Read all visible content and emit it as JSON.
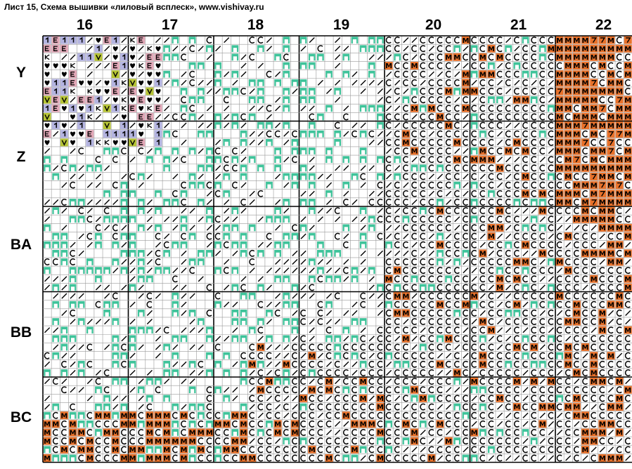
{
  "title": "Лист 15, Схема вышивки «лиловый всплеск», www.vishivay.ru",
  "column_numbers": [
    "16",
    "17",
    "18",
    "19",
    "20",
    "21",
    "22"
  ],
  "row_labels": [
    "Y",
    "Z",
    "BA",
    "BB",
    "BC"
  ],
  "colors": {
    "grid_line": "#9a9a9a",
    "grid_major": "#000000",
    "green": "#3fc39a",
    "orange": "#e8712a",
    "pink": "#e3a8b8",
    "lavender": "#b4b4e0",
    "olive": "#b6c436",
    "purple_border": "#8a3fc2"
  },
  "symbol_legend": {
    "green": "filled-green-square",
    "slash": "diagonal-stroke",
    "C": "open-c-circle",
    "M": "orange-m",
    "heart": "heart",
    "E": "pink-e",
    "1": "lavender-one",
    "K": "k",
    "V": "olive-v"
  }
}
